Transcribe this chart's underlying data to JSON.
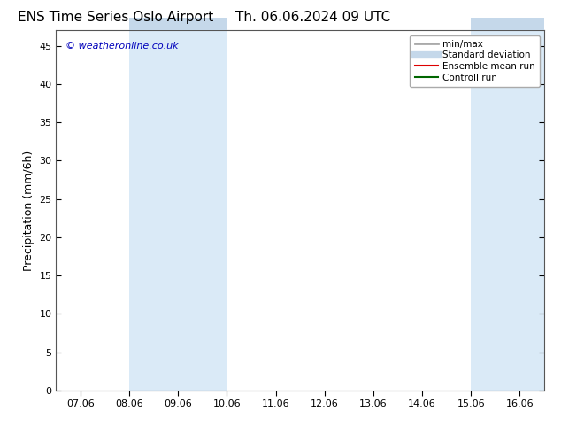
{
  "title_left": "ENS Time Series Oslo Airport",
  "title_right": "Th. 06.06.2024 09 UTC",
  "ylabel": "Precipitation (mm/6h)",
  "watermark": "© weatheronline.co.uk",
  "ylim": [
    0,
    47
  ],
  "yticks": [
    0,
    5,
    10,
    15,
    20,
    25,
    30,
    35,
    40,
    45
  ],
  "xtick_labels": [
    "07.06",
    "08.06",
    "09.06",
    "10.06",
    "11.06",
    "12.06",
    "13.06",
    "14.06",
    "15.06",
    "16.06"
  ],
  "xtick_positions": [
    0,
    1,
    2,
    3,
    4,
    5,
    6,
    7,
    8,
    9
  ],
  "xlim": [
    -0.5,
    9.5
  ],
  "shaded_regions": [
    {
      "x_start": 1.0,
      "x_end": 2.0,
      "color": "#daeaf7"
    },
    {
      "x_start": 2.0,
      "x_end": 3.0,
      "color": "#daeaf7"
    },
    {
      "x_start": 8.0,
      "x_end": 9.0,
      "color": "#daeaf7"
    },
    {
      "x_start": 9.0,
      "x_end": 9.5,
      "color": "#daeaf7"
    }
  ],
  "top_bar_regions": [
    {
      "x_start": 1.0,
      "x_end": 2.0
    },
    {
      "x_start": 2.0,
      "x_end": 3.0
    },
    {
      "x_start": 8.0,
      "x_end": 9.0
    },
    {
      "x_start": 9.0,
      "x_end": 9.5
    }
  ],
  "legend_entries": [
    {
      "label": "min/max",
      "color": "#aaaaaa",
      "linestyle": "-",
      "linewidth": 2
    },
    {
      "label": "Standard deviation",
      "color": "#c5d8ea",
      "linestyle": "-",
      "linewidth": 6
    },
    {
      "label": "Ensemble mean run",
      "color": "#dd0000",
      "linestyle": "-",
      "linewidth": 1.5
    },
    {
      "label": "Controll run",
      "color": "#006600",
      "linestyle": "-",
      "linewidth": 1.5
    }
  ],
  "background_color": "#ffffff",
  "plot_bg_color": "#ffffff",
  "top_bar_color": "#c5d8ea",
  "watermark_color": "#0000bb",
  "title_fontsize": 11,
  "tick_fontsize": 8,
  "ylabel_fontsize": 9,
  "legend_fontsize": 7.5
}
